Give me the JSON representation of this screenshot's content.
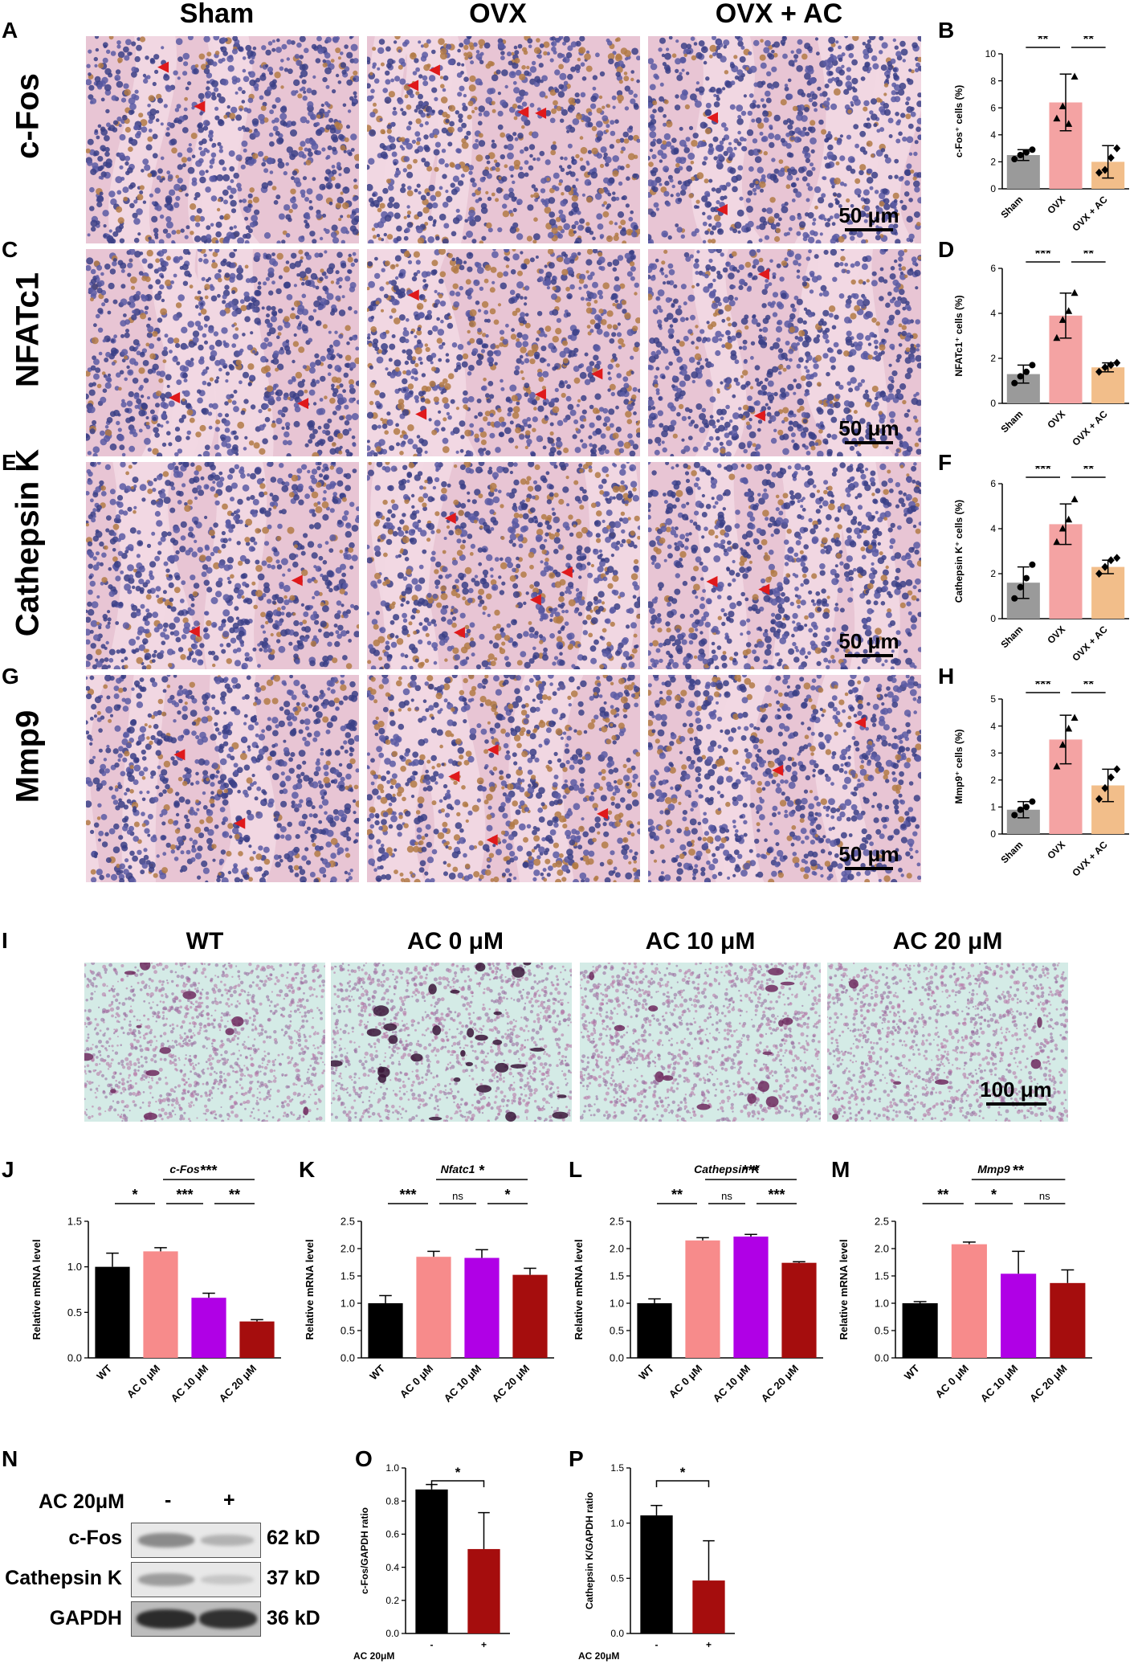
{
  "panel_letters": [
    "A",
    "B",
    "C",
    "D",
    "E",
    "F",
    "G",
    "H",
    "I",
    "J",
    "K",
    "L",
    "M",
    "N",
    "O",
    "P"
  ],
  "ihc": {
    "column_headers": [
      "Sham",
      "OVX",
      "OVX + AC"
    ],
    "row_labels": [
      "c-Fos",
      "NFATc1",
      "Cathepsin K",
      "Mmp9"
    ],
    "scale_label": "50 μm"
  },
  "trap": {
    "column_headers": [
      "WT",
      "AC 0 μM",
      "AC 10 μM",
      "AC 20 μM"
    ],
    "scale_label": "100 μm"
  },
  "western": {
    "condition_label": "AC 20μM",
    "lane_signs": [
      "-",
      "+"
    ],
    "rows": [
      {
        "protein": "c-Fos",
        "size": "62 kD"
      },
      {
        "protein": "Cathepsin K",
        "size": "37 kD"
      },
      {
        "protein": "GAPDH",
        "size": "36 kD"
      }
    ]
  },
  "colors": {
    "sham": "#9a9a9a",
    "ovx": "#f4a3a3",
    "ovx_ac": "#f2be8a",
    "wt": "#000000",
    "ac0": "#f78b8b",
    "ac10": "#b000e6",
    "ac20": "#a50d0d",
    "ihc_pink": "#e8c5d4",
    "trap_bg": "#d4ebe6"
  },
  "chart_data": [
    {
      "id": "B",
      "type": "bar",
      "ylabel": "c-Fos⁺ cells (%)",
      "categories": [
        "Sham",
        "OVX",
        "OVX + AC"
      ],
      "values": [
        2.5,
        6.4,
        2.0
      ],
      "errors": [
        0.4,
        2.1,
        1.2
      ],
      "ylim": [
        0,
        10
      ],
      "yticks": [
        "0",
        "2",
        "4",
        "6",
        "8",
        "10"
      ],
      "points": [
        [
          2.2,
          2.5,
          2.7,
          2.9
        ],
        [
          5.2,
          6.1,
          4.8,
          8.3
        ],
        [
          1.2,
          1.4,
          2.3,
          3.0
        ]
      ],
      "sig": [
        {
          "label": "**",
          "from": 0,
          "to": 1
        },
        {
          "label": "**",
          "from": 1,
          "to": 2
        }
      ]
    },
    {
      "id": "D",
      "type": "bar",
      "ylabel": "NFATc1⁺ cells (%)",
      "categories": [
        "Sham",
        "OVX",
        "OVX + AC"
      ],
      "values": [
        1.3,
        3.9,
        1.6
      ],
      "errors": [
        0.4,
        1.0,
        0.2
      ],
      "ylim": [
        0,
        6
      ],
      "yticks": [
        "0",
        "2",
        "4",
        "6"
      ],
      "points": [
        [
          0.9,
          1.2,
          1.4,
          1.7
        ],
        [
          2.9,
          3.7,
          4.1,
          4.9
        ],
        [
          1.4,
          1.6,
          1.7,
          1.8
        ]
      ],
      "sig": [
        {
          "label": "***",
          "from": 0,
          "to": 1
        },
        {
          "label": "**",
          "from": 1,
          "to": 2
        }
      ]
    },
    {
      "id": "F",
      "type": "bar",
      "ylabel": "Cathepsin K⁺ cells (%)",
      "categories": [
        "Sham",
        "OVX",
        "OVX + AC"
      ],
      "values": [
        1.6,
        4.2,
        2.3
      ],
      "errors": [
        0.7,
        0.9,
        0.3
      ],
      "ylim": [
        0,
        6
      ],
      "yticks": [
        "0",
        "2",
        "4",
        "6"
      ],
      "points": [
        [
          0.9,
          1.4,
          1.8,
          2.4
        ],
        [
          3.4,
          4.0,
          4.4,
          5.3
        ],
        [
          2.0,
          2.3,
          2.6,
          2.7
        ]
      ],
      "sig": [
        {
          "label": "***",
          "from": 0,
          "to": 1
        },
        {
          "label": "**",
          "from": 1,
          "to": 2
        }
      ]
    },
    {
      "id": "H",
      "type": "bar",
      "ylabel": "Mmp9⁺ cells (%)",
      "categories": [
        "Sham",
        "OVX",
        "OVX + AC"
      ],
      "values": [
        0.9,
        3.5,
        1.8
      ],
      "errors": [
        0.3,
        0.9,
        0.6
      ],
      "ylim": [
        0,
        5
      ],
      "yticks": [
        "0",
        "1",
        "2",
        "3",
        "4",
        "5"
      ],
      "points": [
        [
          0.7,
          0.9,
          1.0,
          1.2
        ],
        [
          2.5,
          3.3,
          3.9,
          4.3
        ],
        [
          1.3,
          1.7,
          2.1,
          2.4
        ]
      ],
      "sig": [
        {
          "label": "***",
          "from": 0,
          "to": 1
        },
        {
          "label": "**",
          "from": 1,
          "to": 2
        }
      ]
    },
    {
      "id": "J",
      "type": "bar",
      "title": "c-Fos",
      "ylabel": "Relative mRNA level",
      "categories": [
        "WT",
        "AC 0 μM",
        "AC 10 μM",
        "AC 20 μM"
      ],
      "values": [
        1.0,
        1.17,
        0.66,
        0.4
      ],
      "errors": [
        0.15,
        0.04,
        0.05,
        0.02
      ],
      "ylim": [
        0,
        1.5
      ],
      "yticks": [
        "0.0",
        "0.5",
        "1.0",
        "1.5"
      ],
      "sig": [
        {
          "label": "*",
          "from": 0,
          "to": 1,
          "level": 0
        },
        {
          "label": "***",
          "from": 1,
          "to": 2,
          "level": 0
        },
        {
          "label": "**",
          "from": 2,
          "to": 3,
          "level": 0
        },
        {
          "label": "***",
          "from": 1,
          "to": 3,
          "level": 1
        }
      ]
    },
    {
      "id": "K",
      "type": "bar",
      "title": "Nfatc1",
      "ylabel": "Relative mRNA level",
      "categories": [
        "WT",
        "AC 0 μM",
        "AC 10 μM",
        "AC 20 μM"
      ],
      "values": [
        1.0,
        1.85,
        1.83,
        1.52
      ],
      "errors": [
        0.14,
        0.1,
        0.15,
        0.12
      ],
      "ylim": [
        0,
        2.5
      ],
      "yticks": [
        "0.0",
        "0.5",
        "1.0",
        "1.5",
        "2.0",
        "2.5"
      ],
      "sig": [
        {
          "label": "***",
          "from": 0,
          "to": 1,
          "level": 0
        },
        {
          "label": "ns",
          "from": 1,
          "to": 2,
          "level": 0
        },
        {
          "label": "*",
          "from": 2,
          "to": 3,
          "level": 0
        },
        {
          "label": "*",
          "from": 1,
          "to": 3,
          "level": 1
        }
      ]
    },
    {
      "id": "L",
      "type": "bar",
      "title": "Cathepsin K",
      "ylabel": "Relative mRNA level",
      "categories": [
        "WT",
        "AC 0 μM",
        "AC 10 μM",
        "AC 20 μM"
      ],
      "values": [
        1.0,
        2.15,
        2.22,
        1.74
      ],
      "errors": [
        0.08,
        0.05,
        0.04,
        0.02
      ],
      "ylim": [
        0,
        2.5
      ],
      "yticks": [
        "0.0",
        "0.5",
        "1.0",
        "1.5",
        "2.0",
        "2.5"
      ],
      "sig": [
        {
          "label": "**",
          "from": 0,
          "to": 1,
          "level": 0
        },
        {
          "label": "ns",
          "from": 1,
          "to": 2,
          "level": 0
        },
        {
          "label": "***",
          "from": 2,
          "to": 3,
          "level": 0
        },
        {
          "label": "***",
          "from": 1,
          "to": 3,
          "level": 1
        }
      ]
    },
    {
      "id": "M",
      "type": "bar",
      "title": "Mmp9",
      "ylabel": "Relative mRNA level",
      "categories": [
        "WT",
        "AC 0 μM",
        "AC 10 μM",
        "AC 20 μM"
      ],
      "values": [
        1.0,
        2.08,
        1.54,
        1.37
      ],
      "errors": [
        0.03,
        0.04,
        0.41,
        0.24
      ],
      "ylim": [
        0,
        2.5
      ],
      "yticks": [
        "0.0",
        "0.5",
        "1.0",
        "1.5",
        "2.0",
        "2.5"
      ],
      "sig": [
        {
          "label": "**",
          "from": 0,
          "to": 1,
          "level": 0
        },
        {
          "label": "*",
          "from": 1,
          "to": 2,
          "level": 0
        },
        {
          "label": "ns",
          "from": 2,
          "to": 3,
          "level": 0
        },
        {
          "label": "**",
          "from": 1,
          "to": 3,
          "level": 1
        }
      ]
    },
    {
      "id": "O",
      "type": "bar",
      "ylabel": "c-Fos/GAPDH ratio",
      "xlabel": "AC 20μM",
      "categories": [
        "-",
        "+"
      ],
      "values": [
        0.87,
        0.51
      ],
      "errors": [
        0.03,
        0.22
      ],
      "ylim": [
        0,
        1.0
      ],
      "yticks": [
        "0.0",
        "0.2",
        "0.4",
        "0.6",
        "0.8",
        "1.0"
      ],
      "sig": [
        {
          "label": "*",
          "from": 0,
          "to": 1
        }
      ]
    },
    {
      "id": "P",
      "type": "bar",
      "ylabel": "Cathepsin K/GAPDH ratio",
      "xlabel": "AC 20μM",
      "categories": [
        "-",
        "+"
      ],
      "values": [
        1.07,
        0.48
      ],
      "errors": [
        0.09,
        0.36
      ],
      "ylim": [
        0,
        1.5
      ],
      "yticks": [
        "0.0",
        "0.5",
        "1.0",
        "1.5"
      ],
      "sig": [
        {
          "label": "*",
          "from": 0,
          "to": 1
        }
      ]
    }
  ]
}
